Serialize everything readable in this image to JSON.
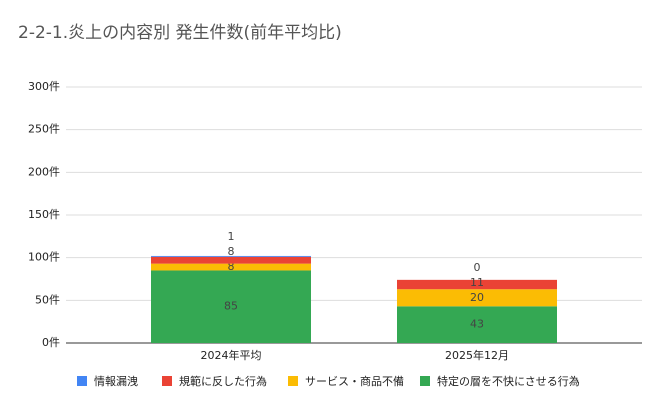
{
  "chart_data": {
    "type": "stacked_bar",
    "title": "2-2-1.炎上の内容別 発生件数(前年平均比)",
    "categories": [
      "2024年平均",
      "2025年12月"
    ],
    "series": [
      {
        "name": "情報漏洩",
        "color": "#4285f4",
        "values": [
          1,
          0
        ]
      },
      {
        "name": "規範に反した行為",
        "color": "#ea4335",
        "values": [
          8,
          11
        ]
      },
      {
        "name": "サービス・商品不備",
        "color": "#fbbc04",
        "values": [
          8,
          20
        ]
      },
      {
        "name": "特定の層を不快にさせる行為",
        "color": "#34a853",
        "values": [
          85,
          43
        ]
      }
    ],
    "ylim": [
      0,
      300
    ],
    "yticks": [
      {
        "value": 0,
        "label": "0件"
      },
      {
        "value": 50,
        "label": "50件"
      },
      {
        "value": 100,
        "label": "100件"
      },
      {
        "value": 150,
        "label": "150件"
      },
      {
        "value": 200,
        "label": "200件"
      },
      {
        "value": 250,
        "label": "250件"
      },
      {
        "value": 300,
        "label": "300件"
      }
    ],
    "grid": true,
    "legend": "bottom"
  }
}
